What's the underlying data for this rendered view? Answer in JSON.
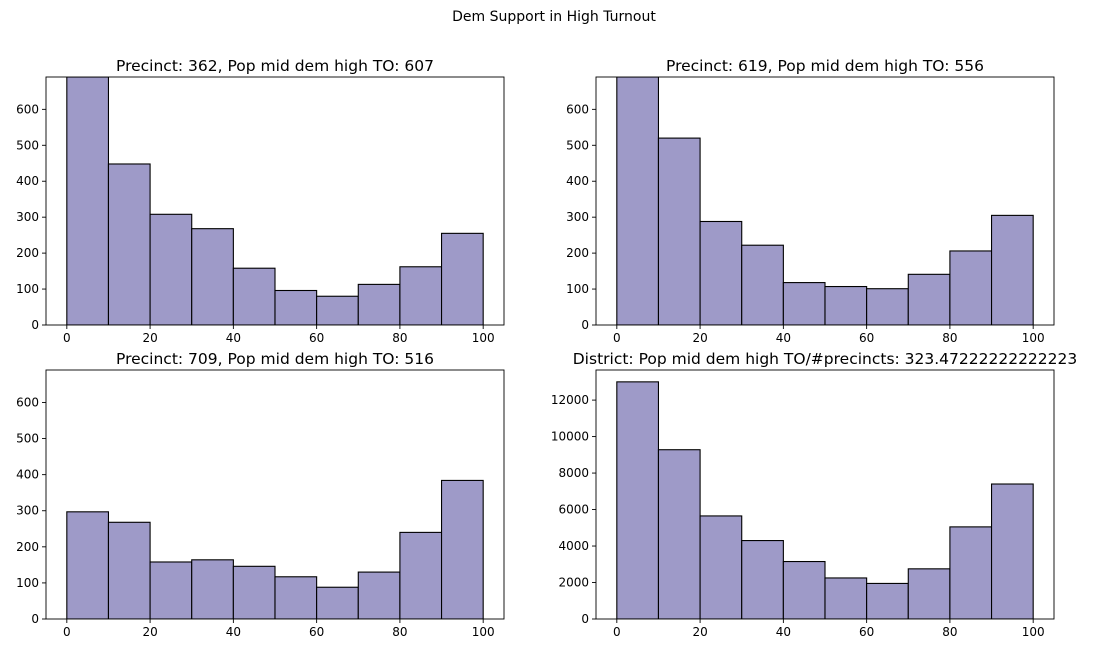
{
  "figure": {
    "title": "Dem Support in High Turnout"
  },
  "chart_data": [
    {
      "type": "bar",
      "title": "Precinct: 362, Pop mid dem high TO: 607",
      "bin_edges": [
        0,
        10,
        20,
        30,
        40,
        50,
        60,
        70,
        80,
        90,
        100
      ],
      "values": [
        690,
        448,
        308,
        268,
        158,
        96,
        80,
        113,
        162,
        255
      ],
      "xlim": [
        -5,
        105
      ],
      "ylim": [
        0,
        690
      ],
      "xticks": [
        0,
        20,
        40,
        60,
        80,
        100
      ],
      "yticks": [
        0,
        100,
        200,
        300,
        400,
        500,
        600
      ],
      "grid": false
    },
    {
      "type": "bar",
      "title": "Precinct: 619, Pop mid dem high TO: 556",
      "bin_edges": [
        0,
        10,
        20,
        30,
        40,
        50,
        60,
        70,
        80,
        90,
        100
      ],
      "values": [
        690,
        520,
        288,
        222,
        118,
        107,
        101,
        141,
        206,
        305
      ],
      "xlim": [
        -5,
        105
      ],
      "ylim": [
        0,
        690
      ],
      "xticks": [
        0,
        20,
        40,
        60,
        80,
        100
      ],
      "yticks": [
        0,
        100,
        200,
        300,
        400,
        500,
        600
      ],
      "grid": false
    },
    {
      "type": "bar",
      "title": "Precinct: 709, Pop mid dem high TO: 516",
      "bin_edges": [
        0,
        10,
        20,
        30,
        40,
        50,
        60,
        70,
        80,
        90,
        100
      ],
      "values": [
        297,
        268,
        158,
        164,
        146,
        117,
        88,
        130,
        240,
        384
      ],
      "xlim": [
        -5,
        105
      ],
      "ylim": [
        0,
        690
      ],
      "xticks": [
        0,
        20,
        40,
        60,
        80,
        100
      ],
      "yticks": [
        0,
        100,
        200,
        300,
        400,
        500,
        600
      ],
      "grid": false
    },
    {
      "type": "bar",
      "title": "District: Pop mid dem high TO/#precincts: 323.47222222222223",
      "bin_edges": [
        0,
        10,
        20,
        30,
        40,
        50,
        60,
        70,
        80,
        90,
        100
      ],
      "values": [
        13000,
        9280,
        5650,
        4300,
        3150,
        2250,
        1950,
        2750,
        5050,
        7400
      ],
      "xlim": [
        -5,
        105
      ],
      "ylim": [
        0,
        13650
      ],
      "xticks": [
        0,
        20,
        40,
        60,
        80,
        100
      ],
      "yticks": [
        0,
        2000,
        4000,
        6000,
        8000,
        10000,
        12000
      ],
      "grid": false
    }
  ],
  "colors": {
    "bar_fill": "#9e9ac8",
    "bar_edge": "#000000"
  }
}
